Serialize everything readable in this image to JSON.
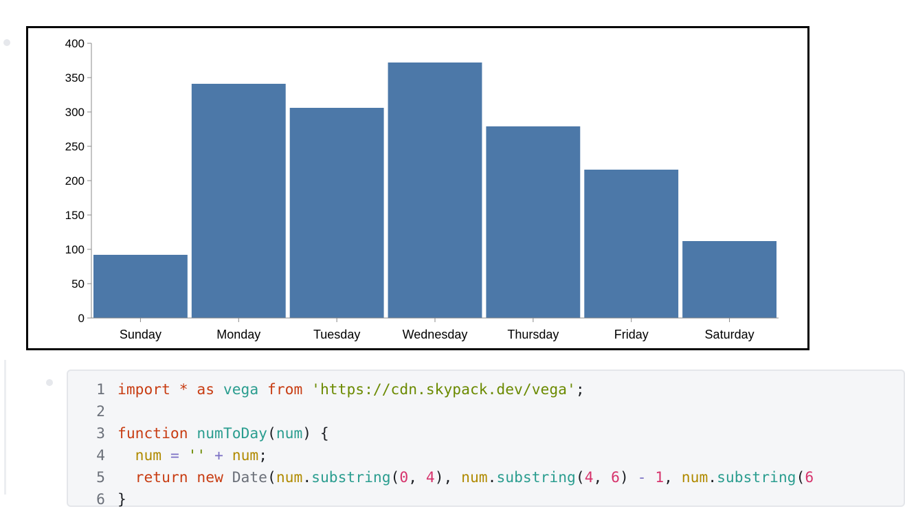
{
  "chart_data": {
    "type": "bar",
    "categories": [
      "Sunday",
      "Monday",
      "Tuesday",
      "Wednesday",
      "Thursday",
      "Friday",
      "Saturday"
    ],
    "values": [
      92,
      341,
      306,
      372,
      279,
      216,
      112
    ],
    "ylim": [
      0,
      400
    ],
    "yticks": [
      "0",
      "50",
      "100",
      "150",
      "200",
      "250",
      "300",
      "350",
      "400"
    ],
    "grid": false,
    "bar_color": "#4c78a8"
  },
  "code": {
    "line_numbers": [
      "1",
      "2",
      "3",
      "4",
      "5",
      "6"
    ],
    "line1": {
      "import": "import",
      "star": "*",
      "as": "as",
      "vega": "vega",
      "from": "from",
      "url": "'https://cdn.skypack.dev/vega'",
      "semi": ";"
    },
    "line3": {
      "function": "function",
      "name": "numToDay",
      "open": "(",
      "param": "num",
      "close": ") {"
    },
    "line4": {
      "num": "num",
      "eq": "=",
      "empty": "''",
      "plus": "+",
      "num2": "num",
      "semi": ";"
    },
    "line5": {
      "return": "return",
      "new": "new",
      "date": "Date",
      "open": "(",
      "num1": "num",
      "dot1": ".",
      "sub1": "substring",
      "p1": "(",
      "z": "0",
      "c1": ", ",
      "four": "4",
      "p2": "), ",
      "num2": "num",
      "dot2": ".",
      "sub2": "substring",
      "p3": "(",
      "four2": "4",
      "c2": ", ",
      "six": "6",
      "p4": ") ",
      "minus": "-",
      "one": "1",
      "c3": ", ",
      "num3": "num",
      "dot3": ".",
      "sub3": "substring",
      "p5": "(",
      "six2": "6"
    },
    "line6": {
      "brace": "}"
    }
  }
}
